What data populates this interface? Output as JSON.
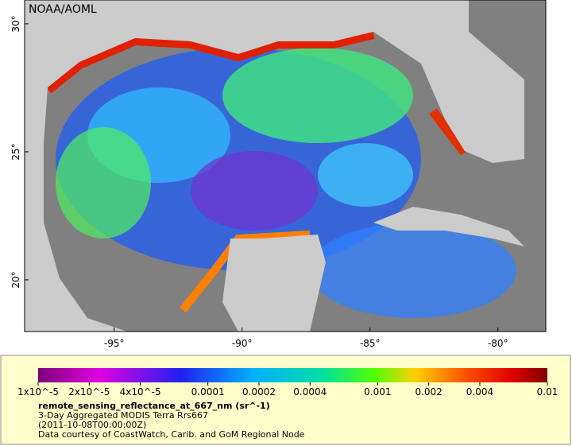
{
  "map": {
    "credit": "NOAA/AOML",
    "xlim": [
      -98.5,
      -78.13
    ],
    "ylim": [
      17.98,
      30.93
    ],
    "xticks": [
      {
        "value": -95,
        "label": "-95°"
      },
      {
        "value": -90,
        "label": "-90°"
      },
      {
        "value": -85,
        "label": "-85°"
      },
      {
        "value": -80,
        "label": "-80°"
      }
    ],
    "yticks": [
      {
        "value": 30,
        "label": "30°"
      },
      {
        "value": 25,
        "label": "25°"
      },
      {
        "value": 20,
        "label": "20°"
      }
    ]
  },
  "colorbar": {
    "scale": "log",
    "lim": [
      1e-05,
      0.01
    ],
    "ticks": [
      {
        "value": 1e-05,
        "label": "1x10^-5"
      },
      {
        "value": 2e-05,
        "label": "2x10^-5"
      },
      {
        "value": 4e-05,
        "label": "4x10^-5"
      },
      {
        "value": 0.0001,
        "label": "0.0001"
      },
      {
        "value": 0.0002,
        "label": "0.0002"
      },
      {
        "value": 0.0004,
        "label": "0.0004"
      },
      {
        "value": 0.001,
        "label": "0.001"
      },
      {
        "value": 0.002,
        "label": "0.002"
      },
      {
        "value": 0.004,
        "label": "0.004"
      },
      {
        "value": 0.01,
        "label": "0.01"
      }
    ]
  },
  "legend": {
    "variable": "remote_sensing_reflectance_at_667_nm (sr^-1)",
    "description": "3-Day Aggregated MODIS Terra Rrs667",
    "time": "(2011-10-08T00:00:00Z)",
    "source": "Data courtesy of CoastWatch, Carib. and GoM Regional Node"
  }
}
